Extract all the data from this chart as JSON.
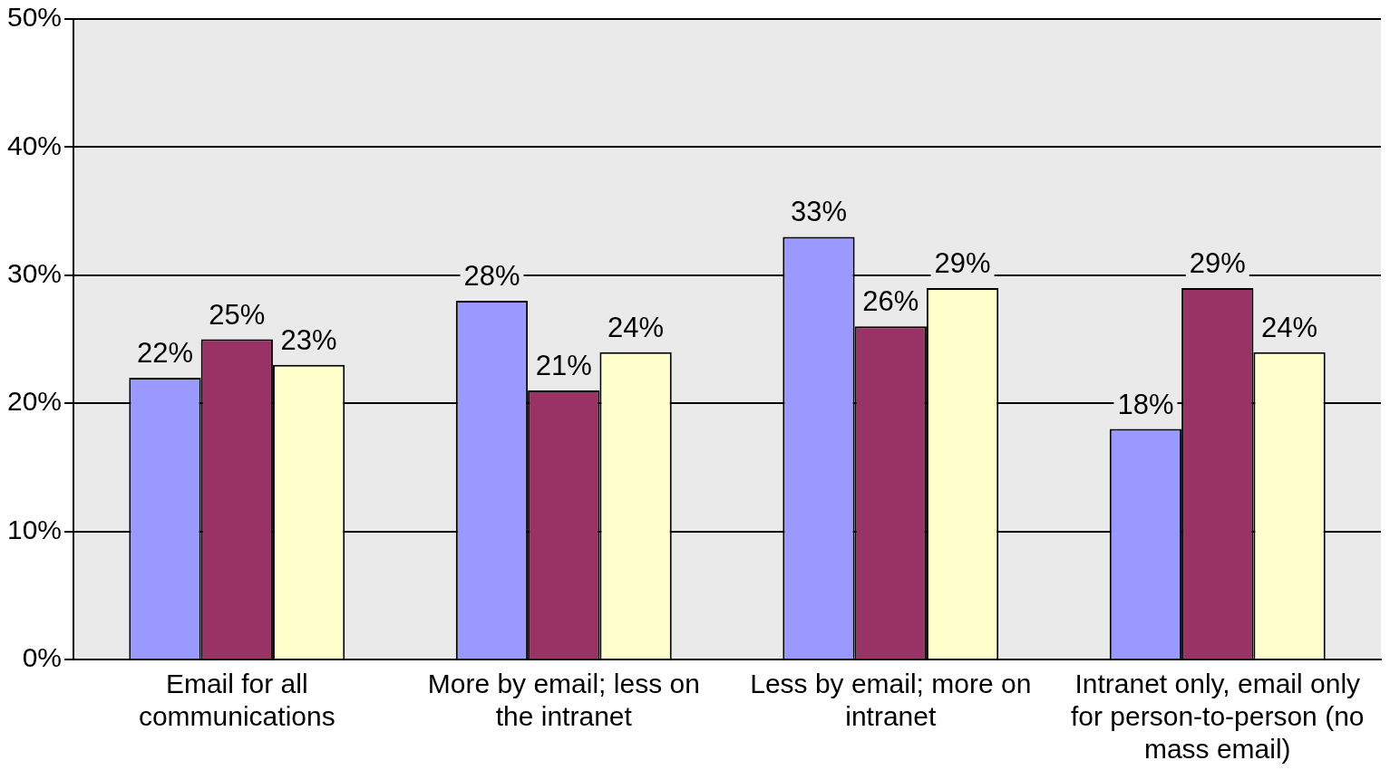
{
  "chart_data": {
    "type": "bar",
    "categories": [
      "Email for all communications",
      "More by email; less on the intranet",
      "Less by email; more on intranet",
      "Intranet only, email only for person-to-person (no mass email)"
    ],
    "series": [
      {
        "color": "#9999ff",
        "values": [
          22,
          28,
          33,
          18
        ],
        "value_labels": [
          "22%",
          "28%",
          "33%",
          "18%"
        ]
      },
      {
        "color": "#993366",
        "values": [
          25,
          21,
          26,
          29
        ],
        "value_labels": [
          "25%",
          "21%",
          "26%",
          "29%"
        ]
      },
      {
        "color": "#ffffcc",
        "values": [
          23,
          24,
          29,
          24
        ],
        "value_labels": [
          "23%",
          "24%",
          "29%",
          "24%"
        ]
      }
    ],
    "ylim": [
      0,
      50
    ],
    "yticks": [
      {
        "value": 0,
        "label": "0%"
      },
      {
        "value": 10,
        "label": "10%"
      },
      {
        "value": 20,
        "label": "20%"
      },
      {
        "value": 30,
        "label": "30%"
      },
      {
        "value": 40,
        "label": "40%"
      },
      {
        "value": 50,
        "label": "50%"
      }
    ],
    "grid": "y",
    "legend": false
  }
}
